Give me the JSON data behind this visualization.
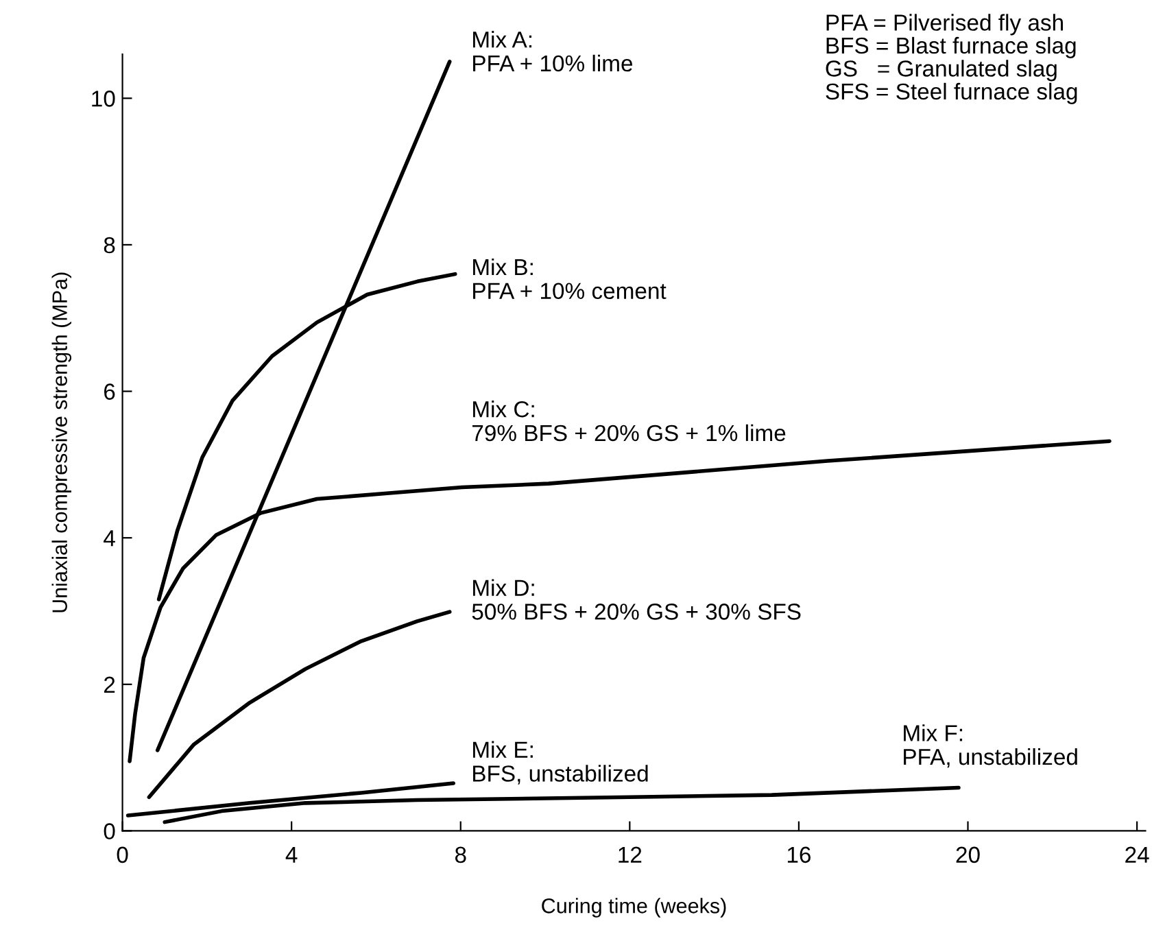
{
  "chart_data": {
    "type": "line",
    "xlabel": "Curing time (weeks)",
    "ylabel": "Uniaxial compressive strength (MPa)",
    "xlim": [
      0,
      24.2
    ],
    "ylim": [
      0,
      10.6
    ],
    "xticks": [
      0,
      4,
      8,
      12,
      16,
      20,
      24
    ],
    "yticks": [
      0,
      2,
      4,
      6,
      8,
      10
    ],
    "grid": false,
    "marker": "none",
    "line_style": "solid",
    "series": [
      {
        "color": "#000000",
        "x": [
          0.83,
          7.74
        ],
        "values": [
          1.1,
          10.5
        ]
      },
      {
        "color": "#000000",
        "x": [
          0.86,
          1.3,
          1.89,
          2.6,
          3.54,
          4.6,
          5.79,
          6.98,
          7.87
        ],
        "values": [
          3.16,
          4.1,
          5.1,
          5.87,
          6.48,
          6.94,
          7.32,
          7.5,
          7.6
        ]
      },
      {
        "color": "#000000",
        "x": [
          0.17,
          0.3,
          0.5,
          0.9,
          1.43,
          2.22,
          3.28,
          4.6,
          6.31,
          8.03,
          10.08,
          16.68,
          23.35
        ],
        "values": [
          0.95,
          1.6,
          2.36,
          3.05,
          3.58,
          4.04,
          4.34,
          4.53,
          4.61,
          4.69,
          4.74,
          5.05,
          5.32
        ]
      },
      {
        "color": "#000000",
        "x": [
          0.63,
          1.69,
          3.01,
          4.33,
          5.65,
          6.97,
          7.74
        ],
        "values": [
          0.46,
          1.18,
          1.75,
          2.21,
          2.59,
          2.86,
          2.99
        ]
      },
      {
        "color": "#000000",
        "x": [
          0.13,
          3.01,
          5.65,
          7.83
        ],
        "values": [
          0.21,
          0.38,
          0.52,
          0.65
        ]
      },
      {
        "color": "#000000",
        "x": [
          1.0,
          2.35,
          4.33,
          6.97,
          12.0,
          15.36,
          19.78
        ],
        "values": [
          0.12,
          0.27,
          0.38,
          0.42,
          0.46,
          0.49,
          0.59
        ]
      }
    ],
    "annotations": [
      "Mix A:\nPFA + 10% lime",
      "Mix B:\nPFA + 10% cement",
      "Mix C:\n79% BFS + 20% GS + 1% lime",
      "Mix D:\n50% BFS + 20% GS + 30% SFS",
      "Mix E:\nBFS, unstabilized",
      "Mix F:\nPFA, unstabilized",
      "PFA = Pilverised fly ash\nBFS = Blast furnace slag\nGS   = Granulated slag\nSFS = Steel furnace slag"
    ]
  }
}
